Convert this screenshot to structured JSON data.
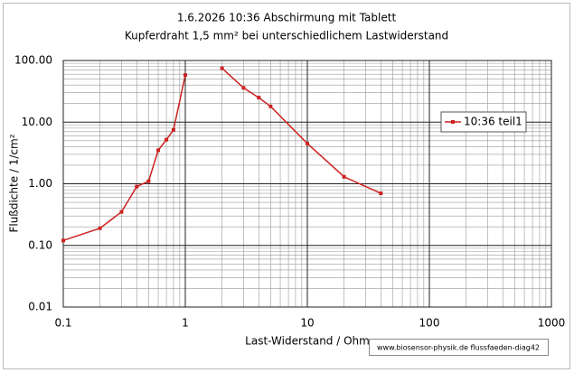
{
  "chart_data": {
    "type": "line",
    "title": "1.6.2026      10:36      Abschirmung mit Tablett",
    "subtitle": "Kupferdraht  1,5 mm² bei unterschiedlichem Lastwiderstand",
    "x_label": "Last-Widerstand / Ohm",
    "y_label": "Flußdichte / 1/cm²",
    "annotation": "www.biosensor-physik.de  flussfaeden-diag42",
    "x": [
      0.1,
      0.2,
      0.3,
      0.4,
      0.5,
      0.6,
      0.7,
      0.8,
      1,
      null,
      2,
      3,
      4,
      5,
      10,
      20,
      40
    ],
    "series": [
      {
        "name": "10:36 teil1",
        "color": "#cc2222",
        "values": [
          0.12,
          0.19,
          0.35,
          0.9,
          1.1,
          3.5,
          5.2,
          7.5,
          58,
          null,
          75,
          36,
          25,
          18,
          4.5,
          1.3,
          0.7
        ]
      }
    ],
    "xlim": [
      0.1,
      1000
    ],
    "ylim": [
      0.01,
      100
    ],
    "xticks": [
      0.1,
      1,
      10,
      100,
      1000
    ],
    "yticks": [
      {
        "value": 100,
        "label": "100.00"
      },
      {
        "value": 10,
        "label": "10.00"
      },
      {
        "value": 1,
        "label": "1.00"
      },
      {
        "value": 0.1,
        "label": "0.10"
      },
      {
        "value": 0.01,
        "label": "0.01"
      }
    ],
    "x_log": true,
    "y_log": true,
    "grid": true,
    "minor_grid": true,
    "legend": "right"
  }
}
